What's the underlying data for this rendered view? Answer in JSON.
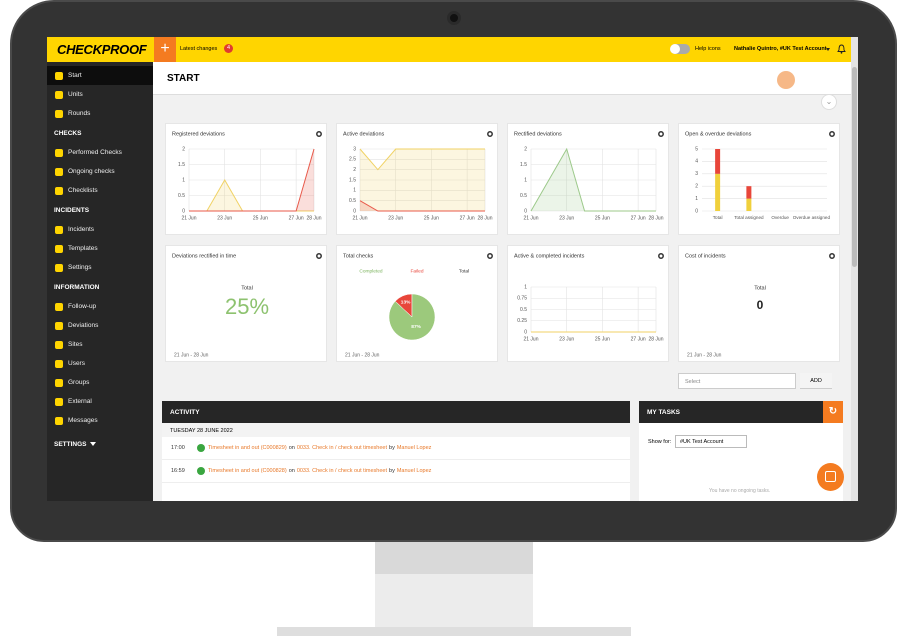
{
  "topbar": {
    "logo": "CHECKPROOF",
    "latest_changes": "Latest changes",
    "badge": 4,
    "help_icons": "Help icons",
    "user": "Nathalie Quintro, #UK Test Account"
  },
  "sidebar": {
    "top_items": [
      "Start",
      "Units",
      "Rounds"
    ],
    "sections": [
      {
        "title": "CHECKS",
        "items": [
          "Performed Checks",
          "Ongoing checks",
          "Checklists"
        ]
      },
      {
        "title": "INCIDENTS",
        "items": [
          "Incidents",
          "Templates",
          "Settings"
        ]
      },
      {
        "title": "INFORMATION",
        "items": [
          "Follow-up",
          "Deviations",
          "Sites",
          "Users",
          "Groups",
          "External",
          "Messages"
        ]
      }
    ],
    "settings": "SETTINGS"
  },
  "page_title": "START",
  "widgets": [
    {
      "title": "Registered deviations",
      "type": "line",
      "ylim": [
        0,
        2
      ],
      "yticks": [
        0,
        0.5,
        1,
        1.5,
        2
      ],
      "categories": [
        "21 Jun",
        null,
        "23 Jun",
        null,
        "25 Jun",
        null,
        "27 Jun",
        "28 Jun"
      ],
      "series": [
        {
          "color": "#f0d264",
          "values": [
            0,
            0,
            1,
            0,
            0,
            0,
            0,
            0
          ]
        },
        {
          "color": "#e8594a",
          "values": [
            0,
            0,
            0,
            0,
            0,
            0,
            0,
            2
          ]
        }
      ]
    },
    {
      "title": "Active deviations",
      "type": "line",
      "ylim": [
        0,
        3
      ],
      "yticks": [
        0,
        0.5,
        1,
        1.5,
        2,
        2.5,
        3
      ],
      "categories": [
        "21 Jun",
        null,
        "23 Jun",
        null,
        "25 Jun",
        null,
        "27 Jun",
        "28 Jun"
      ],
      "series": [
        {
          "color": "#f0d264",
          "values": [
            3,
            2,
            3,
            3,
            3,
            3,
            3,
            3
          ]
        },
        {
          "color": "#e8594a",
          "values": [
            0.5,
            0,
            0,
            0,
            0,
            0,
            0,
            0
          ]
        }
      ]
    },
    {
      "title": "Rectified deviations",
      "type": "line",
      "ylim": [
        0,
        2
      ],
      "yticks": [
        0,
        0.5,
        1,
        1.5,
        2
      ],
      "categories": [
        "21 Jun",
        null,
        "23 Jun",
        null,
        "25 Jun",
        null,
        "27 Jun",
        "28 Jun"
      ],
      "series": [
        {
          "color": "#9cc98a",
          "values": [
            0,
            1,
            2,
            0,
            0,
            0,
            0,
            0
          ]
        }
      ]
    },
    {
      "title": "Open & overdue deviations",
      "type": "bar",
      "ylim": [
        0,
        5
      ],
      "yticks": [
        0,
        1,
        2,
        3,
        4,
        5
      ],
      "categories": [
        "Total",
        "Total assigned",
        "Overdue",
        "Overdue assigned"
      ],
      "series": [
        {
          "color": "#f0d03c",
          "values": [
            3,
            1,
            0,
            0
          ]
        },
        {
          "color": "#e8463a",
          "values": [
            2,
            1,
            0,
            0
          ]
        }
      ]
    },
    {
      "title": "Deviations rectified in time",
      "type": "stat",
      "label": "Total",
      "total": "25%",
      "date_range": "21 Jun - 28 Jun"
    },
    {
      "title": "Total checks",
      "type": "pie",
      "legend": [
        "Completed",
        "Failed",
        "Total"
      ],
      "values": [
        13,
        87
      ],
      "value_labels": [
        "13%",
        "87%"
      ],
      "colors": [
        "#e8463a",
        "#9cc97c"
      ],
      "date_range": "21 Jun - 28 Jun"
    },
    {
      "title": "Active & completed incidents",
      "type": "line",
      "ylim": [
        0,
        1
      ],
      "yticks": [
        0,
        0.25,
        0.5,
        0.75,
        1
      ],
      "categories": [
        "21 Jun",
        null,
        "23 Jun",
        null,
        "25 Jun",
        null,
        "27 Jun",
        "28 Jun"
      ],
      "series": [
        {
          "color": "#f0d264",
          "values": [
            0,
            0,
            0,
            0,
            0,
            0,
            0,
            0
          ]
        }
      ]
    },
    {
      "title": "Cost of incidents",
      "type": "stat",
      "label": "Total",
      "total": 0,
      "date_range": "21 Jun - 28 Jun"
    }
  ],
  "controls": {
    "select": "Select",
    "add": "ADD"
  },
  "activity": {
    "title": "ACTIVITY",
    "date": "TUESDAY 28 JUNE 2022",
    "entries": [
      {
        "time": "17:00",
        "item": "Timesheet in and out (C000829)",
        "on": "on",
        "checklist": "0033. Check in / check out timesheet",
        "by": "by",
        "user": "Manuel Lopez"
      },
      {
        "time": "16:59",
        "item": "Timesheet in and out (C000828)",
        "on": "on",
        "checklist": "0033. Check in / check out timesheet",
        "by": "by",
        "user": "Manuel Lopez"
      }
    ]
  },
  "tasks": {
    "title": "MY TASKS",
    "show_for": "Show for:",
    "account": "#UK Test Account",
    "empty": "You have no ongoing tasks."
  }
}
